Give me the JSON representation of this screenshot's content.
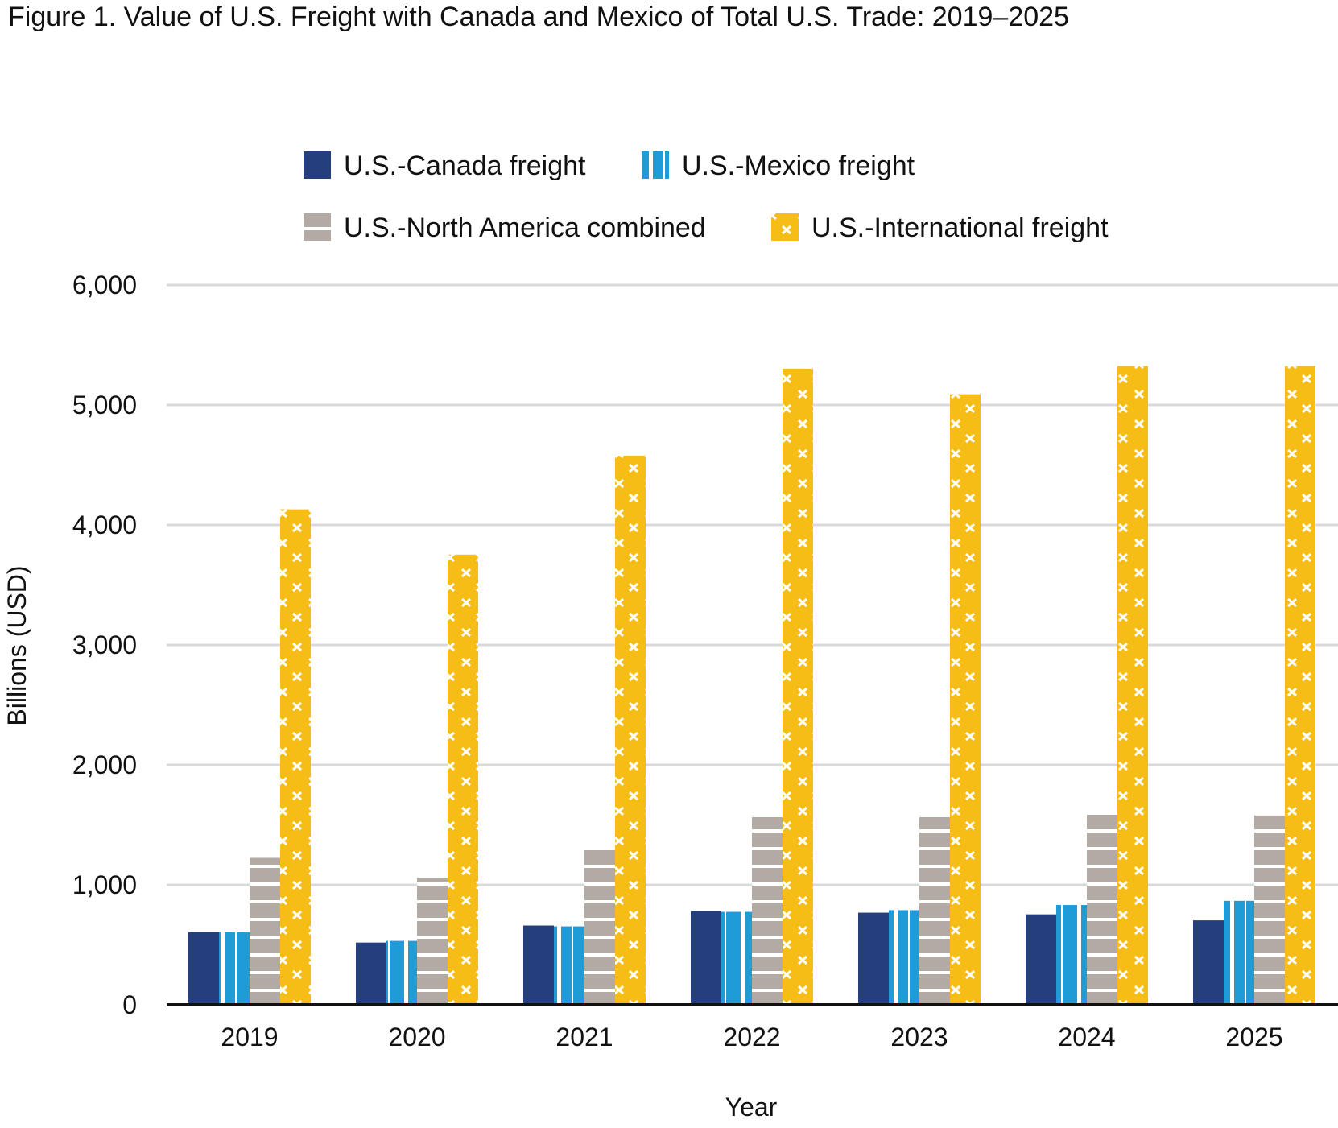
{
  "chart_data": {
    "type": "bar",
    "title": "Figure 1. Value of U.S. Freight with Canada and Mexico of Total U.S. Trade: 2019–2025",
    "xlabel": "Year",
    "ylabel": "Billions (USD)",
    "ylim": [
      0,
      6000
    ],
    "yticks": [
      "0",
      "1,000",
      "2,000",
      "3,000",
      "4,000",
      "5,000",
      "6,000"
    ],
    "grid": true,
    "legend_position": "top",
    "categories": [
      "2019",
      "2020",
      "2021",
      "2022",
      "2023",
      "2024",
      "2025"
    ],
    "series": [
      {
        "name": "U.S.-Canada freight",
        "color": "#253e7d",
        "pattern": "solid",
        "values": [
          606,
          519,
          661,
          782,
          768,
          754,
          704
        ]
      },
      {
        "name": "U.S.-Mexico freight",
        "color": "#1f9bd7",
        "pattern": "vertical-lines",
        "values": [
          606,
          533,
          654,
          775,
          789,
          832,
          867
        ]
      },
      {
        "name": "U.S.-North America combined",
        "color": "#b2aaa3",
        "pattern": "horizontal-lines",
        "values": [
          1225,
          1059,
          1315,
          1564,
          1564,
          1592,
          1578
        ]
      },
      {
        "name": "U.S.-International freight",
        "color": "#f6bd16",
        "pattern": "white-crosses",
        "values": [
          4130,
          3753,
          4578,
          5303,
          5090,
          5325,
          5325
        ]
      }
    ]
  }
}
